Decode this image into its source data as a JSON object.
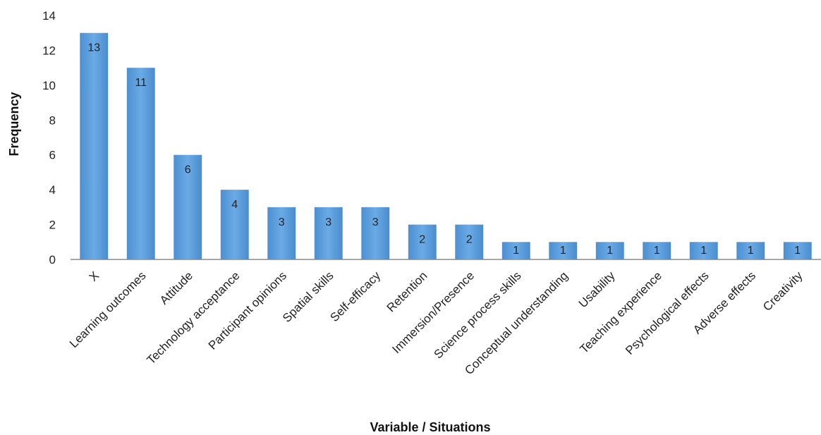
{
  "chart_data": {
    "type": "bar",
    "title": "",
    "xlabel": "Variable / Situations",
    "ylabel": "Frequency",
    "ylim": [
      0,
      14
    ],
    "yticks": [
      0,
      2,
      4,
      6,
      8,
      10,
      12,
      14
    ],
    "grid": false,
    "legend": "none",
    "bar_color": "#5b9bd5",
    "categories": [
      "X",
      "Learning outcomes",
      "Attitude",
      "Technology acceptance",
      "Participant opinions",
      "Spatial skills",
      "Self-efficacy",
      "Retention",
      "Immersion/Presence",
      "Science process skills",
      "Conceptual understanding",
      "Usability",
      "Teaching experience",
      "Psychological effects",
      "Adverse effects",
      "Creativity"
    ],
    "values": [
      13,
      11,
      6,
      4,
      3,
      3,
      3,
      2,
      2,
      1,
      1,
      1,
      1,
      1,
      1,
      1
    ]
  }
}
